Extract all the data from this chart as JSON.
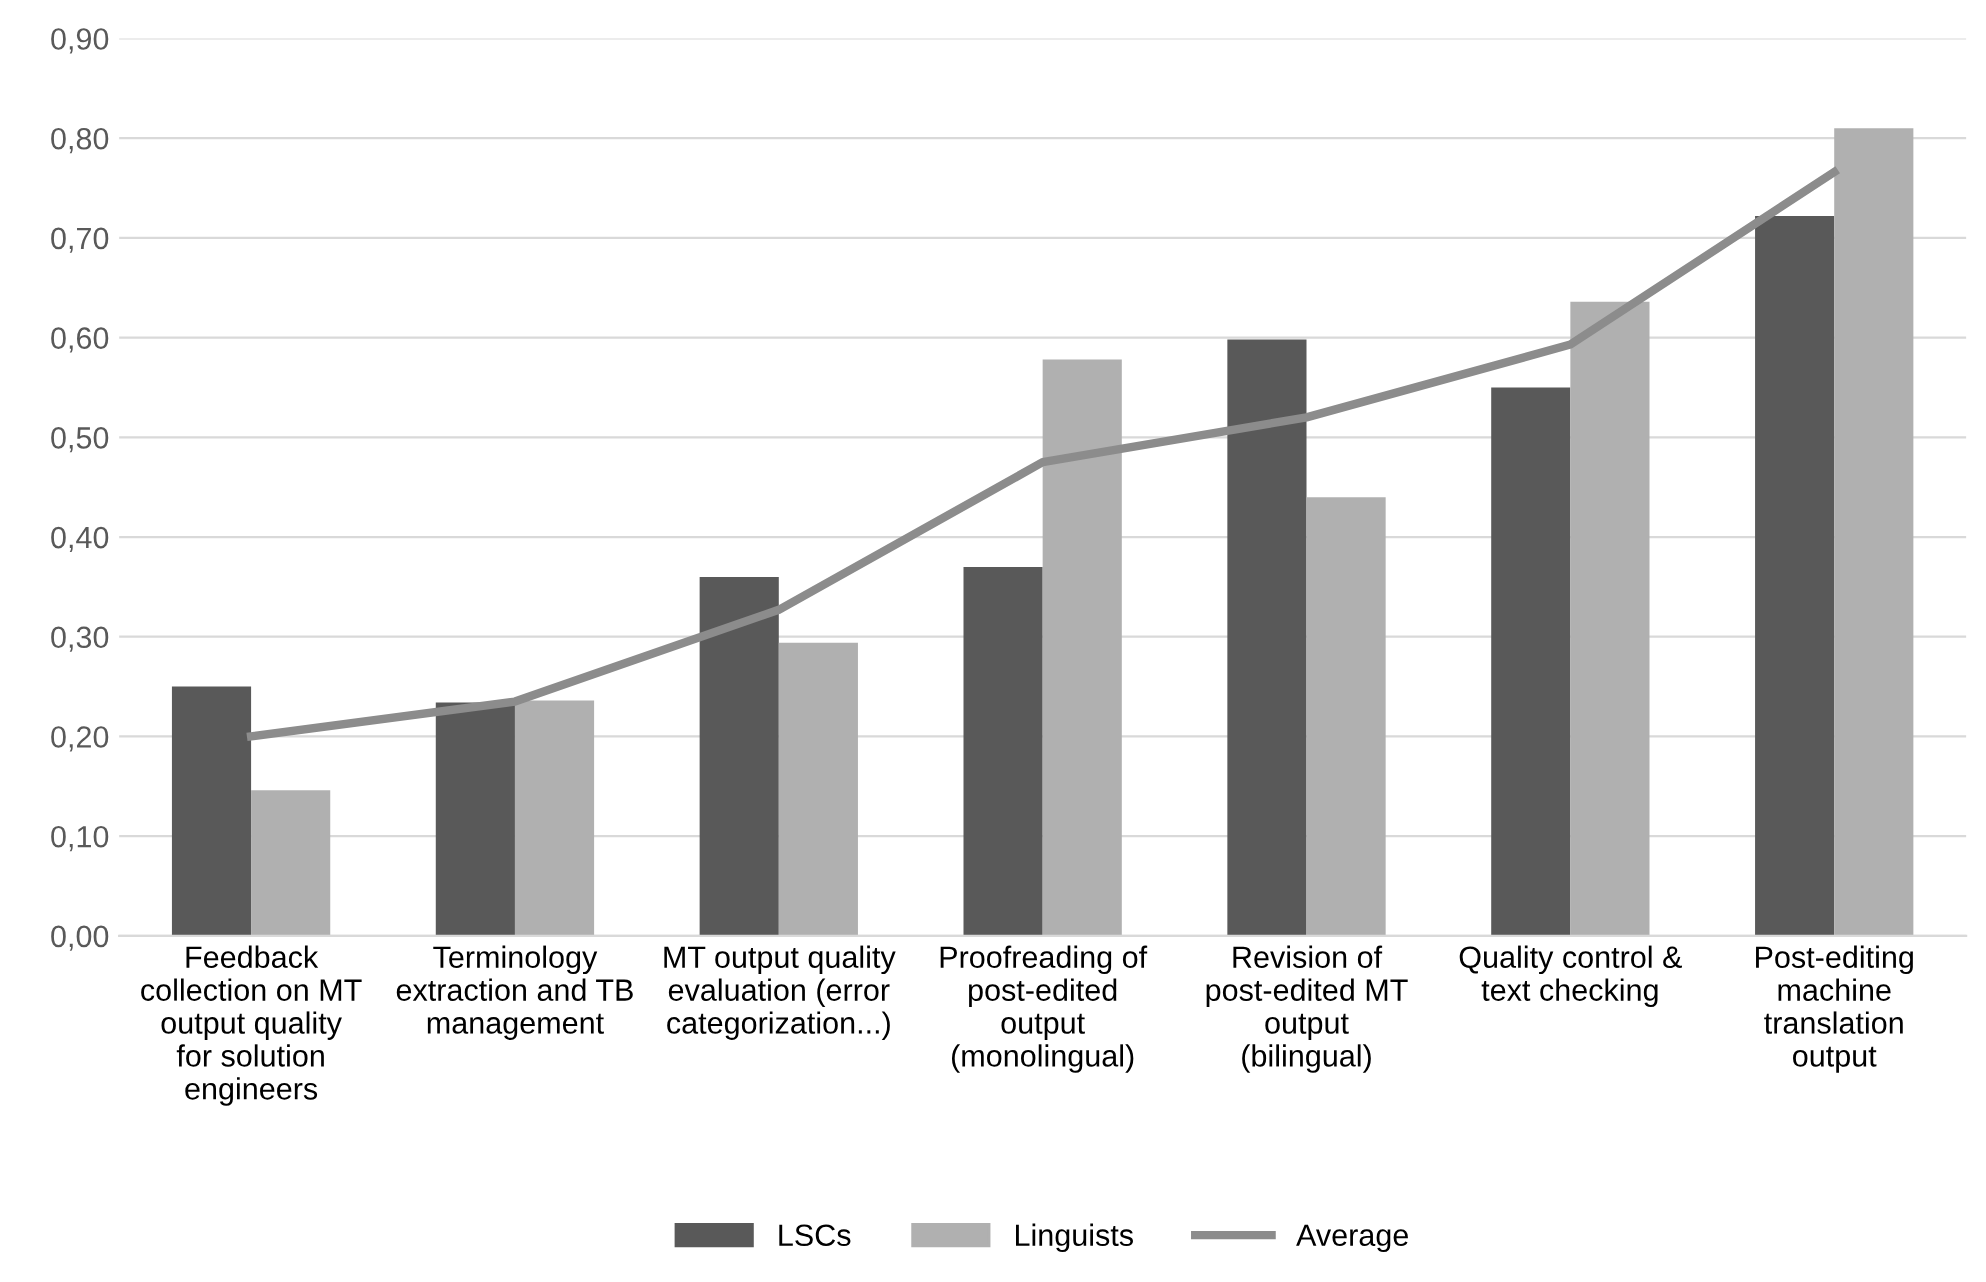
{
  "chart_data": {
    "type": "bar",
    "categories": [
      "Feedback collection on MT output quality for solution engineers",
      "Terminology extraction and TB management",
      "MT output quality evaluation (error categorization...)",
      "Proofreading of post-edited output (monolingual)",
      "Revision of post-edited MT output (bilingual)",
      "Quality control & text checking",
      "Post-editing machine translation output"
    ],
    "series": [
      {
        "name": "LSCs",
        "color": "#595959",
        "values": [
          0.25,
          0.234,
          0.36,
          0.37,
          0.598,
          0.55,
          0.722
        ]
      },
      {
        "name": "Linguists",
        "color": "#b0b0b0",
        "values": [
          0.146,
          0.236,
          0.294,
          0.578,
          0.44,
          0.636,
          0.81
        ]
      },
      {
        "name": "Average",
        "type": "line",
        "color": "#8c8c8c",
        "values": [
          0.2,
          0.235,
          0.327,
          0.475,
          0.52,
          0.593,
          0.766
        ]
      }
    ],
    "ylim": [
      0,
      0.9
    ],
    "yticks": [
      {
        "value": 0,
        "label": "0,00"
      },
      {
        "value": 0.1,
        "label": "0,10"
      },
      {
        "value": 0.2,
        "label": "0,20"
      },
      {
        "value": 0.3,
        "label": "0,30"
      },
      {
        "value": 0.4,
        "label": "0,40"
      },
      {
        "value": 0.5,
        "label": "0,50"
      },
      {
        "value": 0.6,
        "label": "0,60"
      },
      {
        "value": 0.7,
        "label": "0,70"
      },
      {
        "value": 0.8,
        "label": "0,80"
      },
      {
        "value": 0.9,
        "label": "0,90"
      }
    ],
    "grid": "y",
    "legend": "bottom"
  }
}
